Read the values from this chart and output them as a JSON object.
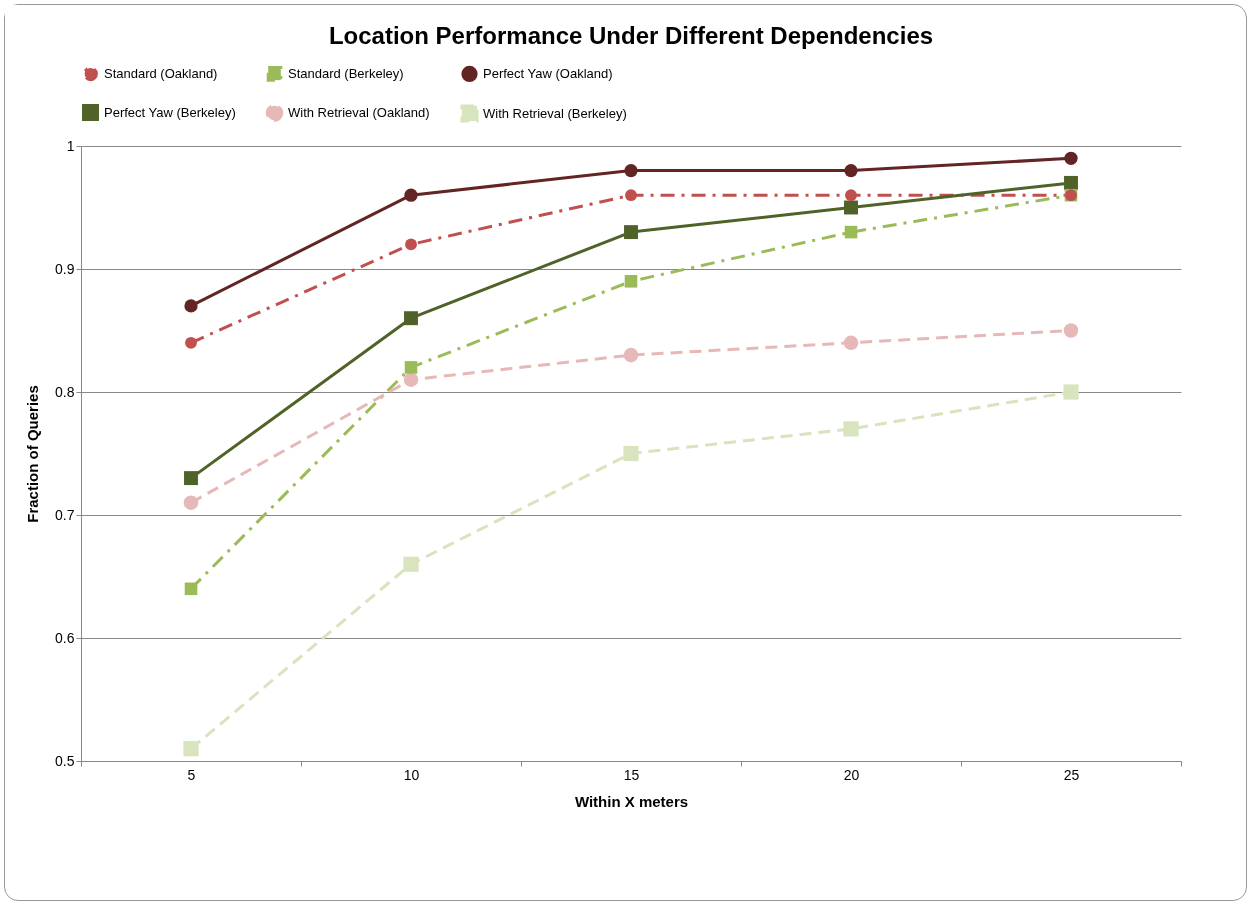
{
  "chart_data": {
    "type": "line",
    "title": "Location Performance Under Different Dependencies",
    "xlabel": "Within X meters",
    "ylabel": "Fraction of Queries",
    "categories": [
      "5",
      "10",
      "15",
      "20",
      "25"
    ],
    "ylim": [
      0.5,
      1
    ],
    "yticks": [
      0.5,
      0.6,
      0.7,
      0.8,
      0.9,
      1
    ],
    "grid": "y",
    "legend": "top",
    "series": [
      {
        "name": "Standard (Oakland)",
        "color": "#c0504d",
        "marker": "circle",
        "line_style": "dashdot",
        "values": [
          0.84,
          0.92,
          0.96,
          0.96,
          0.96
        ]
      },
      {
        "name": "Standard (Berkeley)",
        "color": "#9bbb59",
        "marker": "square",
        "line_style": "dashdot",
        "values": [
          0.64,
          0.82,
          0.89,
          0.93,
          0.96
        ]
      },
      {
        "name": "Perfect Yaw (Oakland)",
        "color": "#632523",
        "marker": "circle",
        "line_style": "solid",
        "values": [
          0.87,
          0.96,
          0.98,
          0.98,
          0.99
        ]
      },
      {
        "name": "Perfect Yaw (Berkeley)",
        "color": "#4f6228",
        "marker": "square",
        "line_style": "solid",
        "values": [
          0.73,
          0.86,
          0.93,
          0.95,
          0.97
        ]
      },
      {
        "name": "With Retrieval (Oakland)",
        "color": "#e6b9b8",
        "marker": "circle",
        "line_style": "dashed",
        "values": [
          0.71,
          0.81,
          0.83,
          0.84,
          0.85
        ]
      },
      {
        "name": "With Retrieval (Berkeley)",
        "color": "#d7e4bd",
        "marker": "square",
        "line_style": "dashed",
        "values": [
          0.51,
          0.66,
          0.75,
          0.77,
          0.8
        ]
      }
    ]
  }
}
